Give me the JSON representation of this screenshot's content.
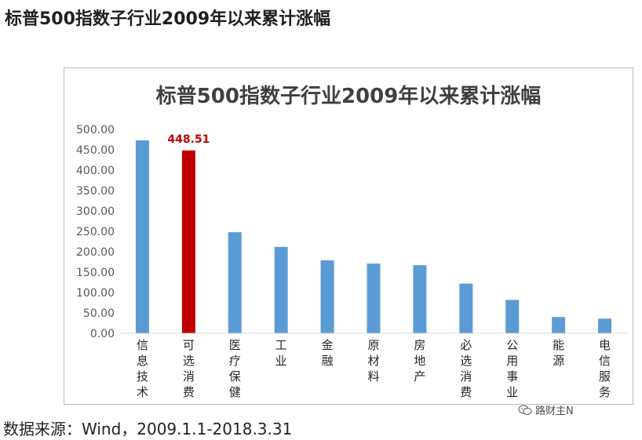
{
  "header": {
    "title": "标普500指数子行业2009年以来累计涨幅"
  },
  "chart_data": {
    "type": "bar",
    "title": "标普500指数子行业2009年以来累计涨幅",
    "categories": [
      "信息技术",
      "可选消费",
      "医疗保健",
      "工业",
      "金融",
      "原材料",
      "房地产",
      "必选消费",
      "公用事业",
      "能源",
      "电信服务"
    ],
    "series": [
      {
        "values": [
          473,
          448.51,
          248,
          212,
          179,
          171,
          167,
          122,
          82,
          40,
          36
        ]
      }
    ],
    "highlight_index": 1,
    "data_labels": [
      {
        "index": 1,
        "text": "448.51"
      }
    ],
    "yticks": [
      "0.00",
      "50.00",
      "100.00",
      "150.00",
      "200.00",
      "250.00",
      "300.00",
      "350.00",
      "400.00",
      "450.00",
      "500.00"
    ],
    "ylim": [
      0,
      500
    ],
    "xlabel": "",
    "ylabel": "",
    "grid": false,
    "legend": "none",
    "colors": {
      "bar": "#5b9bd5",
      "highlight": "#c00000",
      "label": "#c00000",
      "axis": "#d9d9d9",
      "tick_text": "#595959",
      "title_text": "#404040"
    }
  },
  "footer": {
    "source": "数据来源：Wind，2009.1.1-2018.3.31",
    "watermark": "路财主N",
    "watermark_icon": "wechat-icon"
  }
}
